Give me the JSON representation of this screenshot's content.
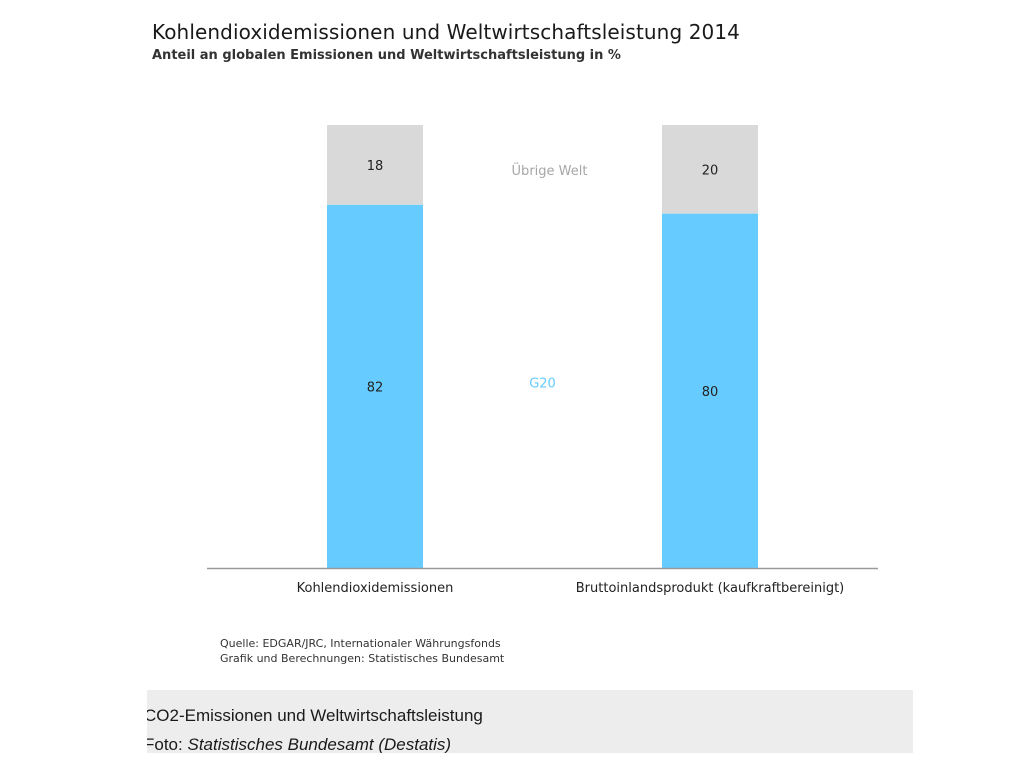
{
  "chart_data": {
    "type": "bar",
    "stacked": true,
    "percent": true,
    "title": "Kohlendioxidemissionen und Weltwirtschaftsleistung 2014",
    "subtitle": "Anteil an globalen Emissionen und Weltwirtschaftsleistung in %",
    "categories": [
      "Kohlendioxidemissionen",
      "Bruttoinlandsprodukt (kaufkraftbereinigt)"
    ],
    "series": [
      {
        "name": "G20",
        "values": [
          82,
          80
        ],
        "color": "#66ccff"
      },
      {
        "name": "Übrige Welt",
        "values": [
          18,
          20
        ],
        "color": "#d9d9d9"
      }
    ],
    "ylim": [
      0,
      100
    ],
    "grid": false,
    "legend": "inline-between-bars",
    "colors": {
      "legend_g20": "#66ccff",
      "legend_rest": "#a6a6a6",
      "baseline": "#999999"
    }
  },
  "source": {
    "line1": "Quelle: EDGAR/JRC, Internationaler Währungsfonds",
    "line2": "Grafik und Berechnungen: Statistisches Bundesamt"
  },
  "caption": {
    "title": "CO2-Emissionen und Weltwirtschaftsleistung",
    "foto_label": "Foto:",
    "foto_credit": "Statistisches Bundesamt (Destatis)"
  }
}
